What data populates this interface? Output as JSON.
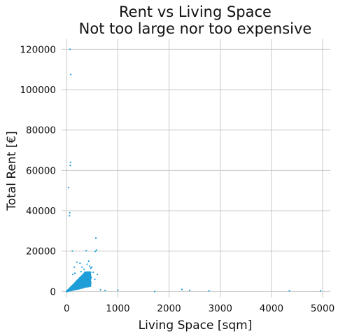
{
  "chart_data": {
    "type": "scatter",
    "title": "Rent vs Living Space",
    "subtitle": "Not too large nor too expensive",
    "xlabel": "Living Space [sqm]",
    "ylabel": "Total Rent [€]",
    "xlim": [
      -100,
      5150
    ],
    "ylim": [
      -3000,
      125000
    ],
    "x_ticks": [
      0,
      1000,
      2000,
      3000,
      4000,
      5000
    ],
    "y_ticks": [
      0,
      20000,
      40000,
      60000,
      80000,
      100000,
      120000
    ],
    "grid": true,
    "color": "#1f9ed9",
    "series": [
      {
        "points": [
          [
            65,
            120000
          ],
          [
            80,
            107500
          ],
          [
            75,
            64000
          ],
          [
            70,
            62500
          ],
          [
            35,
            51500
          ],
          [
            60,
            39000
          ],
          [
            55,
            37500
          ],
          [
            110,
            20000
          ],
          [
            570,
            26500
          ],
          [
            580,
            20500
          ],
          [
            560,
            19800
          ],
          [
            380,
            20200
          ],
          [
            430,
            15000
          ],
          [
            450,
            12500
          ],
          [
            400,
            13500
          ],
          [
            470,
            11500
          ],
          [
            490,
            12000
          ],
          [
            520,
            9500
          ],
          [
            300,
            12000
          ],
          [
            260,
            14000
          ],
          [
            340,
            11000
          ],
          [
            200,
            14500
          ],
          [
            150,
            12000
          ],
          [
            600,
            8500
          ],
          [
            1000,
            700
          ],
          [
            1720,
            0
          ],
          [
            2250,
            1000
          ],
          [
            2400,
            500
          ],
          [
            2780,
            300
          ],
          [
            4350,
            300
          ],
          [
            4960,
            300
          ],
          [
            660,
            800
          ],
          [
            750,
            500
          ],
          [
            120,
            8500
          ],
          [
            160,
            9000
          ],
          [
            420,
            8000
          ],
          [
            480,
            7000
          ],
          [
            550,
            6000
          ],
          [
            350,
            9500
          ],
          [
            280,
            9800
          ]
        ],
        "cluster": {
          "x_range": [
            0,
            470
          ],
          "y_range": [
            0,
            9500
          ],
          "count": 2000
        }
      }
    ]
  }
}
